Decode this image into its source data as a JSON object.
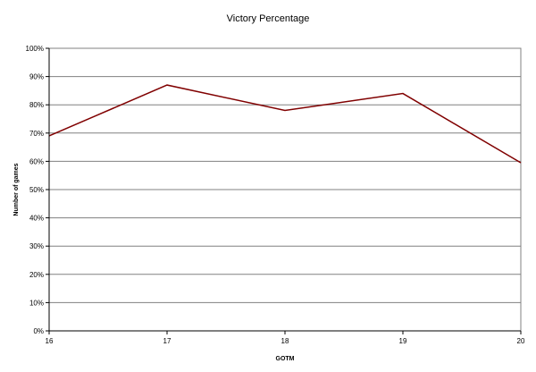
{
  "chart_data": {
    "type": "line",
    "title": "Victory Percentage",
    "xlabel": "GOTM",
    "ylabel": "Number of games",
    "x": [
      "16",
      "17",
      "18",
      "19",
      "20"
    ],
    "y_ticks": [
      "0%",
      "10%",
      "20%",
      "30%",
      "40%",
      "50%",
      "60%",
      "70%",
      "80%",
      "90%",
      "100%"
    ],
    "ylim": [
      0,
      100
    ],
    "grid": true,
    "legend": "none",
    "series": [
      {
        "values": [
          69,
          87,
          78,
          84,
          59.5
        ],
        "color": "#800000"
      }
    ]
  }
}
